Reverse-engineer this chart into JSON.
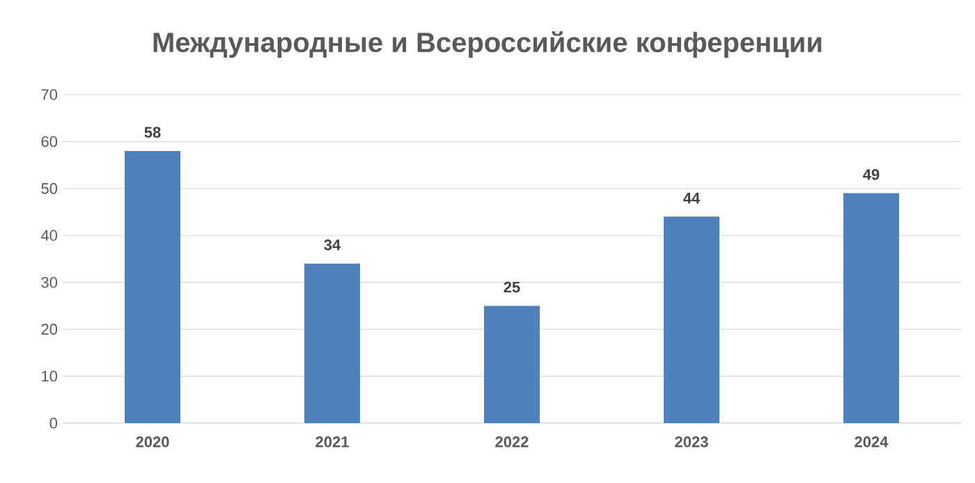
{
  "chart_data": {
    "type": "bar",
    "title": "Международные и Всероссийские конференции",
    "categories": [
      "2020",
      "2021",
      "2022",
      "2023",
      "2024"
    ],
    "values": [
      58,
      34,
      25,
      44,
      49
    ],
    "color": "#4f81bd",
    "ylim": [
      0,
      70
    ],
    "yticks": [
      0,
      10,
      20,
      30,
      40,
      50,
      60,
      70
    ],
    "grid": "y",
    "data_labels": true
  }
}
